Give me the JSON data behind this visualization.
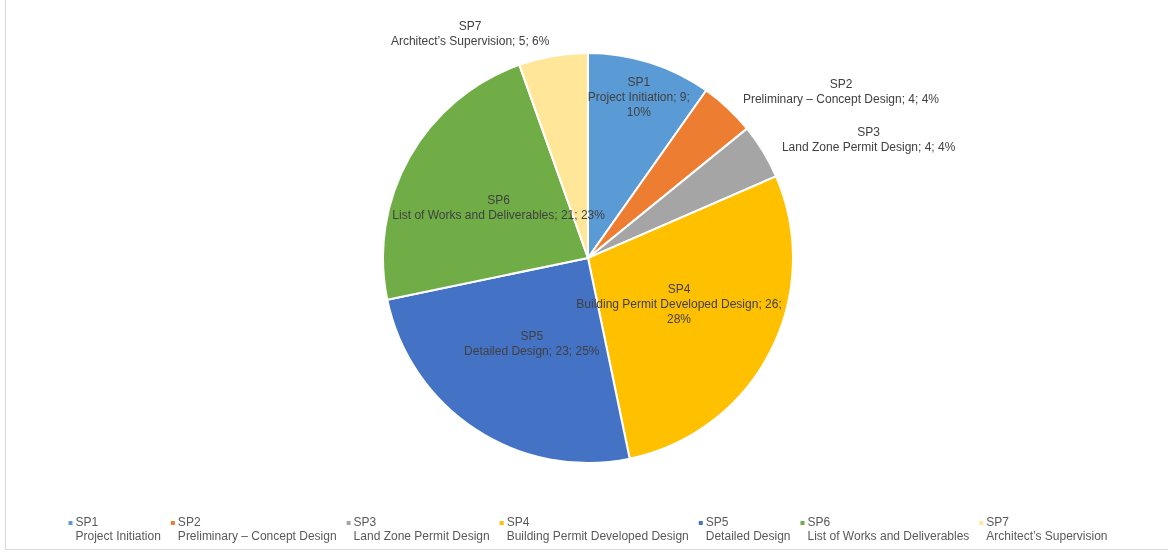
{
  "chart_data": {
    "type": "pie",
    "categories": [
      "SP1\nProject Initiation",
      "SP2\nPreliminary – Concept Design",
      "SP3\nLand Zone Permit Design",
      "SP4\nBuilding Permit Developed Design",
      "SP5\nDetailed Design",
      "SP6\nList of Works and Deliverables",
      "SP7\nArchitect’s Supervision"
    ],
    "values": [
      9,
      4,
      4,
      26,
      23,
      21,
      5
    ],
    "colors": [
      "#5b9bd5",
      "#ed7d31",
      "#a5a5a5",
      "#ffc000",
      "#4472c4",
      "#70ad47",
      "#ffe699"
    ],
    "value_labels": [
      "SP1\nProject Initiation; 9;\n10%",
      "SP2\nPreliminary – Concept Design; 4; 4%",
      "SP3\nLand Zone Permit Design; 4; 4%",
      "SP4\nBuilding Permit Developed Design; 26;\n28%",
      "SP5\nDetailed Design; 23; 25%",
      "SP6\nList of Works and Deliverables; 21; 23%",
      "SP7\nArchitect’s Supervision; 5; 6%"
    ],
    "legend": "bottom"
  }
}
